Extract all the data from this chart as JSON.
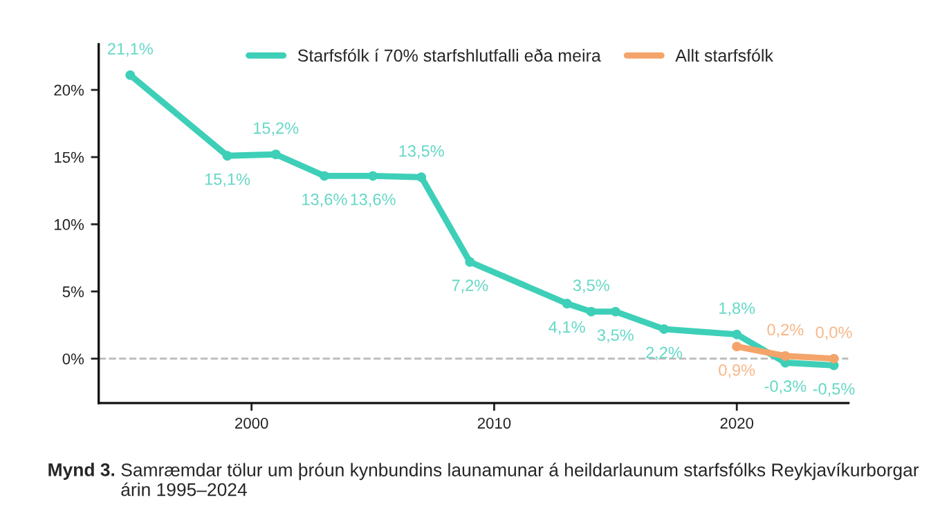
{
  "chart_data": {
    "type": "line",
    "x": [
      1995,
      1999,
      2001,
      2003,
      2005,
      2007,
      2009,
      2013,
      2014,
      2015,
      2017,
      2020,
      2022,
      2024
    ],
    "series": [
      {
        "name": "Starfsfólk í 70% starfshlutfalli eða meira",
        "color": "#3ecfb8",
        "values": [
          21.1,
          15.1,
          15.2,
          13.6,
          13.6,
          13.5,
          7.2,
          4.1,
          3.5,
          3.5,
          2.2,
          1.8,
          -0.3,
          -0.5
        ],
        "value_labels": [
          "21,1%",
          "15,1%",
          "15,2%",
          "13,6%",
          "13,6%",
          "13,5%",
          "7,2%",
          "4,1%",
          "3,5%",
          "3,5%",
          "2,2%",
          "1,8%",
          "-0,3%",
          "-0,5%"
        ]
      },
      {
        "name": "Allt starfsfólk",
        "color": "#f4a46a",
        "x": [
          2020,
          2022,
          2024
        ],
        "values": [
          0.9,
          0.2,
          0.0
        ],
        "value_labels": [
          "0,9%",
          "0,2%",
          "0,0%"
        ]
      }
    ],
    "xlim": [
      1993.7,
      2024.6
    ],
    "xticks": [
      2000,
      2010,
      2020
    ],
    "ylim": [
      -3.3,
      23.4
    ],
    "yticks": [
      {
        "value": 0,
        "label": "0%"
      },
      {
        "value": 5,
        "label": "5%"
      },
      {
        "value": 10,
        "label": "10%"
      },
      {
        "value": 15,
        "label": "15%"
      },
      {
        "value": 20,
        "label": "20%"
      }
    ],
    "ref_lines": [
      {
        "axis": "y",
        "value": 0,
        "color": "#bbbbbb",
        "line_style": "dashed"
      }
    ],
    "marker": "circle",
    "line_style": "solid",
    "grid": false,
    "legend": "top",
    "annotations": [
      "Mynd 3.",
      "Samræmdar tölur um þróun kynbundins launamunar á heildarlaunum starfsfólks Reykjavíkurborgar árin 1995–2024"
    ]
  }
}
